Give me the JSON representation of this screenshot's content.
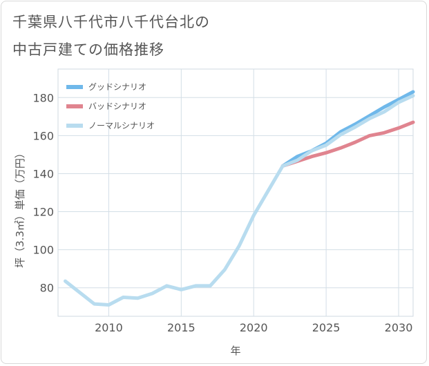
{
  "title_lines": [
    "千葉県八千代市八千代台北の",
    "中古戸建ての価格推移"
  ],
  "chart_data": {
    "type": "line",
    "title": "千葉県八千代市八千代台北の中古戸建ての価格推移",
    "xlabel": "年",
    "ylabel": "坪（3.3㎡）単価（万円）",
    "xlim": [
      2006.5,
      2031
    ],
    "ylim": [
      65,
      195
    ],
    "xticks": [
      2010,
      2015,
      2020,
      2025,
      2030
    ],
    "yticks": [
      80,
      100,
      120,
      140,
      160,
      180
    ],
    "legend_position": "top-left",
    "series": [
      {
        "name": "グッドシナリオ",
        "color": "#6fb8ea",
        "x": [
          2022,
          2023,
          2024,
          2025,
          2026,
          2027,
          2028,
          2029,
          2030,
          2031
        ],
        "y": [
          144,
          149,
          152,
          156,
          162,
          166,
          170.5,
          175,
          179,
          183
        ]
      },
      {
        "name": "バッドシナリオ",
        "color": "#e0848f",
        "x": [
          2022,
          2023,
          2024,
          2025,
          2026,
          2027,
          2028,
          2029,
          2030,
          2031
        ],
        "y": [
          144,
          146.5,
          149,
          151,
          153.5,
          156.5,
          160,
          161.5,
          164,
          167
        ]
      },
      {
        "name": "ノーマルシナリオ",
        "color": "#b8dcef",
        "x": [
          2007,
          2008,
          2009,
          2010,
          2011,
          2012,
          2013,
          2014,
          2015,
          2016,
          2017,
          2018,
          2019,
          2020,
          2021,
          2022,
          2023,
          2024,
          2025,
          2026,
          2027,
          2028,
          2029,
          2030,
          2031
        ],
        "y": [
          83.5,
          77.5,
          71.5,
          71,
          75,
          74.5,
          77,
          81,
          79,
          81,
          81,
          89.5,
          102,
          118,
          131,
          144,
          147,
          152,
          155,
          160.5,
          164.5,
          169,
          172.5,
          177.5,
          181
        ]
      }
    ]
  }
}
